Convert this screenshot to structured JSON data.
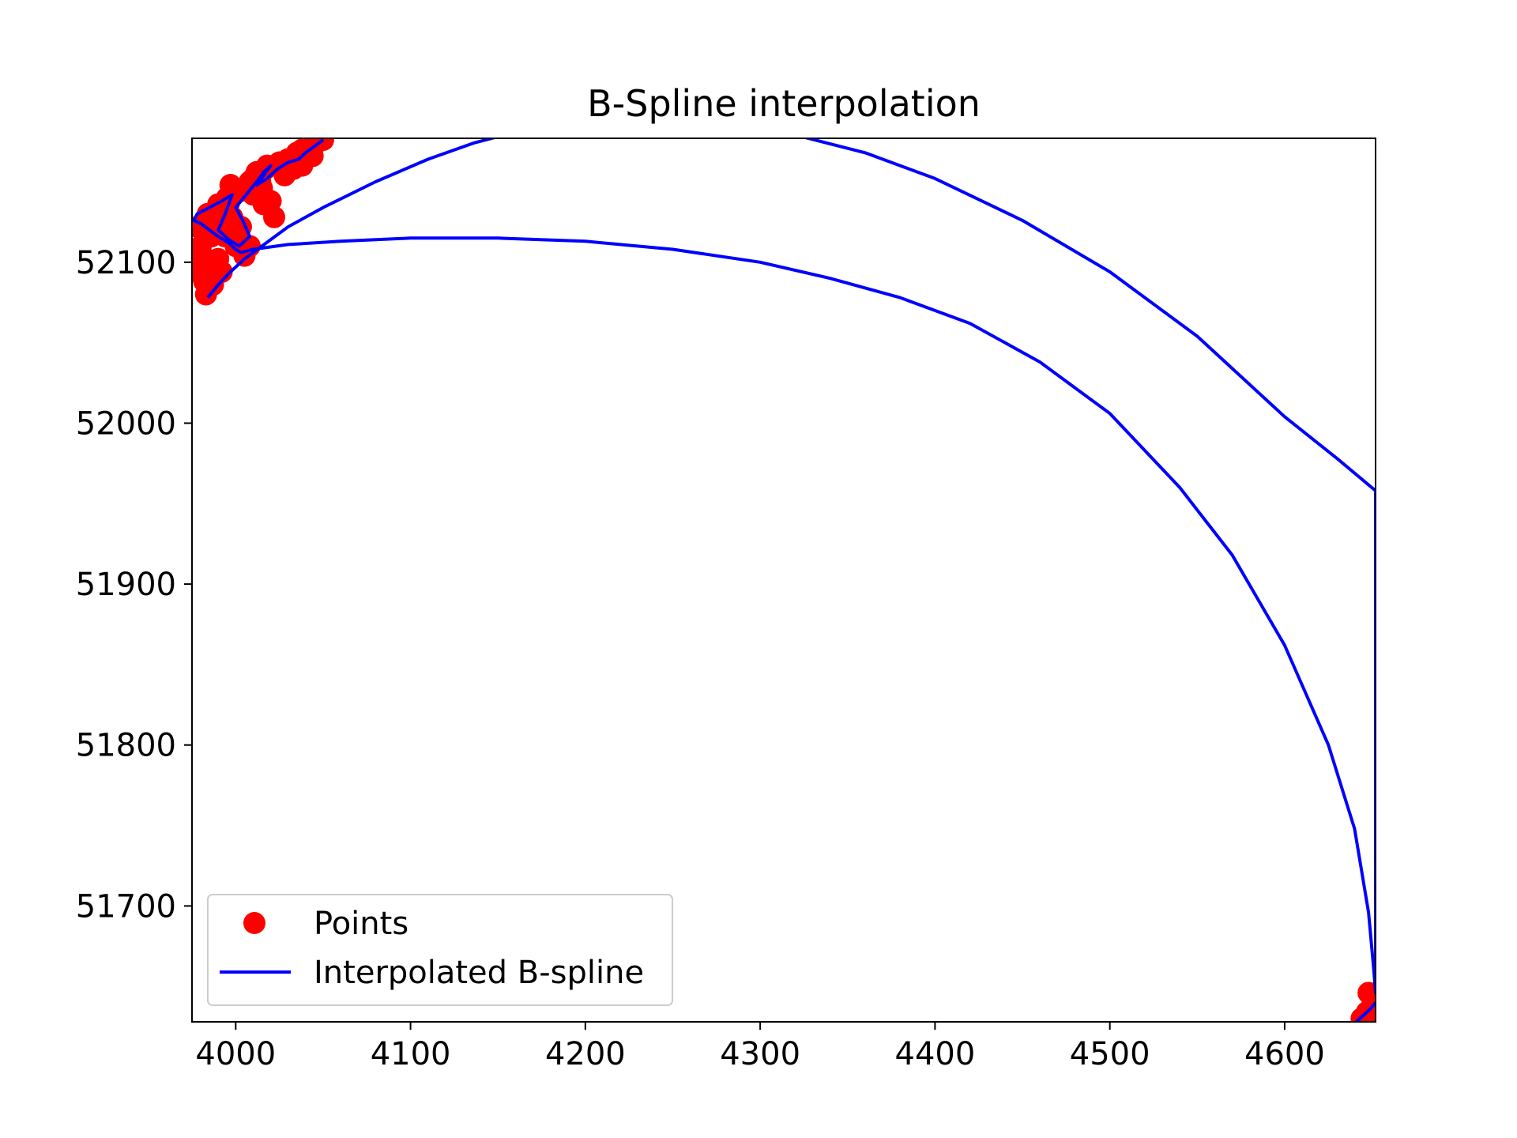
{
  "chart_data": {
    "type": "line",
    "title": "B-Spline interpolation",
    "xlabel": "",
    "ylabel": "",
    "xlim": [
      3975,
      4652
    ],
    "ylim": [
      51628,
      52177
    ],
    "xticks": [
      4000,
      4100,
      4200,
      4300,
      4400,
      4500,
      4600
    ],
    "yticks": [
      51700,
      51800,
      51900,
      52000,
      52100
    ],
    "grid": false,
    "legend": {
      "placement": "lower-left",
      "entries": [
        "Points",
        "Interpolated B-spline"
      ]
    },
    "series": [
      {
        "name": "Points",
        "kind": "scatter",
        "color": "#ff0000",
        "x": [
          3983,
          3987,
          3992,
          3990,
          3985,
          3980,
          3978,
          3984,
          3990,
          3995,
          4000,
          3997,
          3992,
          3988,
          3994,
          4000,
          4005,
          4008,
          4003,
          3998,
          3996,
          4002,
          4008,
          4013,
          4017,
          4014,
          4010,
          4016,
          4022,
          4020,
          4015,
          4010,
          4012,
          4018,
          4025,
          4030,
          4035,
          4038,
          4042,
          4046,
          4050,
          4044,
          4038,
          4033,
          4028,
          3986,
          3981,
          3978,
          3982,
          3988,
          4648,
          4650,
          4647,
          4644,
          4651
        ],
        "y": [
          52080,
          52086,
          52094,
          52102,
          52096,
          52110,
          52122,
          52130,
          52136,
          52140,
          52143,
          52148,
          52134,
          52126,
          52116,
          52110,
          52104,
          52110,
          52122,
          52128,
          52136,
          52144,
          52150,
          52155,
          52158,
          52150,
          52142,
          52136,
          52128,
          52138,
          52146,
          52152,
          52156,
          52160,
          52162,
          52164,
          52168,
          52170,
          52172,
          52174,
          52176,
          52166,
          52160,
          52158,
          52154,
          52116,
          52104,
          52094,
          52088,
          52098,
          51646,
          51638,
          51634,
          51630,
          51632
        ]
      },
      {
        "name": "Interpolated B-spline",
        "kind": "line",
        "color": "#0000ff",
        "x": [
          3984,
          3990,
          3997,
          4005,
          4015,
          4030,
          4050,
          4080,
          4110,
          4136,
          4150,
          4200,
          4250,
          4300,
          4324,
          4360,
          4400,
          4450,
          4500,
          4550,
          4600,
          4630,
          4652,
          4652,
          4651,
          4648,
          4640,
          4625,
          4600,
          4570,
          4540,
          4500,
          4460,
          4420,
          4380,
          4340,
          4300,
          4250,
          4200,
          4150,
          4100,
          4060,
          4030,
          4010,
          4003,
          4000,
          3996,
          3990,
          3985,
          3980,
          3976,
          3978,
          3985,
          3992,
          3998,
          3994,
          3990,
          3996,
          4002,
          4008,
          4004,
          4000,
          4006,
          4012,
          4016,
          4020,
          4016,
          4012,
          4018,
          4024,
          4030,
          4036,
          4040,
          4045,
          4050
        ],
        "y": [
          52078,
          52086,
          52094,
          52102,
          52110,
          52122,
          52134,
          52150,
          52164,
          52174,
          52178,
          52186,
          52188,
          52186,
          52178,
          52168,
          52152,
          52126,
          52094,
          52054,
          52004,
          51978,
          51958,
          51646,
          51660,
          51696,
          51748,
          51800,
          51862,
          51918,
          51960,
          52006,
          52038,
          52062,
          52078,
          52090,
          52100,
          52108,
          52113,
          52115,
          52115,
          52113,
          52111,
          52108,
          52106,
          52108,
          52112,
          52116,
          52120,
          52124,
          52126,
          52130,
          52134,
          52138,
          52142,
          52130,
          52120,
          52114,
          52110,
          52116,
          52126,
          52134,
          52142,
          52150,
          52156,
          52160,
          52154,
          52148,
          52152,
          52158,
          52162,
          52164,
          52168,
          52172,
          52176
        ]
      },
      {
        "name": "",
        "kind": "line",
        "color": "#0000ff",
        "x": [
          4641,
          4645,
          4649,
          4652
        ],
        "y": [
          51628,
          51632,
          51636,
          51640
        ]
      }
    ]
  }
}
